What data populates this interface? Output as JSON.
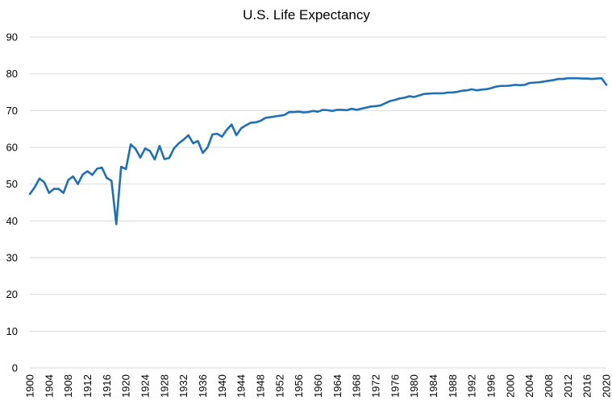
{
  "chart_data": {
    "type": "line",
    "title": "U.S. Life Expectancy",
    "xlabel": "",
    "ylabel": "",
    "ylim": [
      0,
      90
    ],
    "yticks": [
      0,
      10,
      20,
      30,
      40,
      50,
      60,
      70,
      80,
      90
    ],
    "xlim": [
      1900,
      2020
    ],
    "xticks": [
      1900,
      1904,
      1908,
      1912,
      1916,
      1920,
      1924,
      1928,
      1932,
      1936,
      1940,
      1944,
      1948,
      1952,
      1956,
      1960,
      1964,
      1968,
      1972,
      1976,
      1980,
      1984,
      1988,
      1992,
      1996,
      2000,
      2004,
      2008,
      2012,
      2016,
      2020
    ],
    "grid": "horizontal",
    "legend": "none",
    "colors": {
      "series": "#1f6fb5",
      "grid": "#d9d9d9"
    },
    "series": [
      {
        "x": [
          1900,
          1901,
          1902,
          1903,
          1904,
          1905,
          1906,
          1907,
          1908,
          1909,
          1910,
          1911,
          1912,
          1913,
          1914,
          1915,
          1916,
          1917,
          1918,
          1919,
          1920,
          1921,
          1922,
          1923,
          1924,
          1925,
          1926,
          1927,
          1928,
          1929,
          1930,
          1931,
          1932,
          1933,
          1934,
          1935,
          1936,
          1937,
          1938,
          1939,
          1940,
          1941,
          1942,
          1943,
          1944,
          1945,
          1946,
          1947,
          1948,
          1949,
          1950,
          1951,
          1952,
          1953,
          1954,
          1955,
          1956,
          1957,
          1958,
          1959,
          1960,
          1961,
          1962,
          1963,
          1964,
          1965,
          1966,
          1967,
          1968,
          1969,
          1970,
          1971,
          1972,
          1973,
          1974,
          1975,
          1976,
          1977,
          1978,
          1979,
          1980,
          1981,
          1982,
          1983,
          1984,
          1985,
          1986,
          1987,
          1988,
          1989,
          1990,
          1991,
          1992,
          1993,
          1994,
          1995,
          1996,
          1997,
          1998,
          1999,
          2000,
          2001,
          2002,
          2003,
          2004,
          2005,
          2006,
          2007,
          2008,
          2009,
          2010,
          2011,
          2012,
          2013,
          2014,
          2015,
          2016,
          2017,
          2018,
          2019,
          2020
        ],
        "values": [
          47.3,
          49.1,
          51.5,
          50.5,
          47.6,
          48.7,
          48.7,
          47.6,
          51.1,
          52.1,
          50.0,
          52.6,
          53.5,
          52.5,
          54.2,
          54.5,
          51.7,
          50.9,
          39.1,
          54.7,
          54.1,
          60.8,
          59.6,
          57.2,
          59.7,
          59.0,
          56.7,
          60.4,
          56.8,
          57.1,
          59.7,
          61.1,
          62.1,
          63.3,
          61.1,
          61.7,
          58.5,
          60.0,
          63.5,
          63.7,
          62.9,
          64.8,
          66.2,
          63.3,
          65.2,
          66.0,
          66.7,
          66.8,
          67.2,
          68.0,
          68.2,
          68.4,
          68.6,
          68.8,
          69.6,
          69.6,
          69.7,
          69.5,
          69.6,
          69.9,
          69.7,
          70.2,
          70.1,
          69.9,
          70.2,
          70.2,
          70.1,
          70.5,
          70.2,
          70.5,
          70.8,
          71.1,
          71.2,
          71.4,
          72.0,
          72.6,
          72.9,
          73.3,
          73.5,
          73.9,
          73.7,
          74.1,
          74.5,
          74.6,
          74.7,
          74.7,
          74.7,
          74.9,
          74.9,
          75.1,
          75.4,
          75.5,
          75.8,
          75.5,
          75.7,
          75.8,
          76.1,
          76.5,
          76.7,
          76.7,
          76.8,
          77.0,
          76.9,
          77.0,
          77.5,
          77.6,
          77.7,
          77.9,
          78.1,
          78.3,
          78.6,
          78.6,
          78.8,
          78.8,
          78.8,
          78.7,
          78.7,
          78.6,
          78.7,
          78.8,
          77.0
        ]
      }
    ]
  }
}
